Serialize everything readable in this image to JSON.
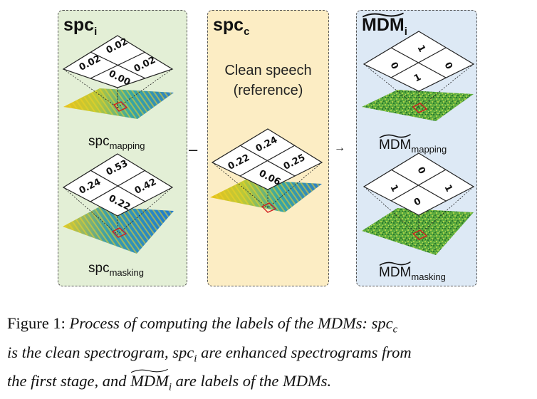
{
  "panels": {
    "left": {
      "title_main": "spc",
      "title_sub": "i",
      "grid_top": [
        "0.02",
        "0.02",
        "0.02",
        "0.00"
      ],
      "grid_bottom": [
        "0.24",
        "0.53",
        "0.42",
        "0.22"
      ],
      "label_top_main": "spc",
      "label_top_sub": "mapping",
      "label_bottom_main": "spc",
      "label_bottom_sub": "masking"
    },
    "middle": {
      "title_main": "spc",
      "title_sub": "c",
      "clean_line1": "Clean speech",
      "clean_line2": "(reference)",
      "grid": [
        "0.22",
        "0.24",
        "0.25",
        "0.06"
      ]
    },
    "right": {
      "title_main": "MDM",
      "title_sub": "i",
      "grid_top": [
        "0",
        "1",
        "0",
        "1"
      ],
      "grid_bottom": [
        "1",
        "0",
        "1",
        "0"
      ],
      "label_top_main": "MDM",
      "label_top_sub": "mapping",
      "label_bottom_main": "MDM",
      "label_bottom_sub": "masking"
    }
  },
  "operators": {
    "minus": "–",
    "arrow": "→"
  },
  "caption": {
    "lead": "Figure 1:",
    "t1": "Process of computing the labels of the MDMs:",
    "spc": "spc",
    "c": "c",
    "t2": "is the clean spectrogram,",
    "i": "i",
    "t3": "are enhanced spectrograms from",
    "t4": "the first stage, and",
    "mdm": "MDM",
    "t5": "are labels of the MDMs."
  },
  "colors": {
    "green_panel": "#e3efd6",
    "yellow_panel": "#fcedc4",
    "blue_panel": "#dde9f5",
    "highlight_square": "#d02020"
  }
}
